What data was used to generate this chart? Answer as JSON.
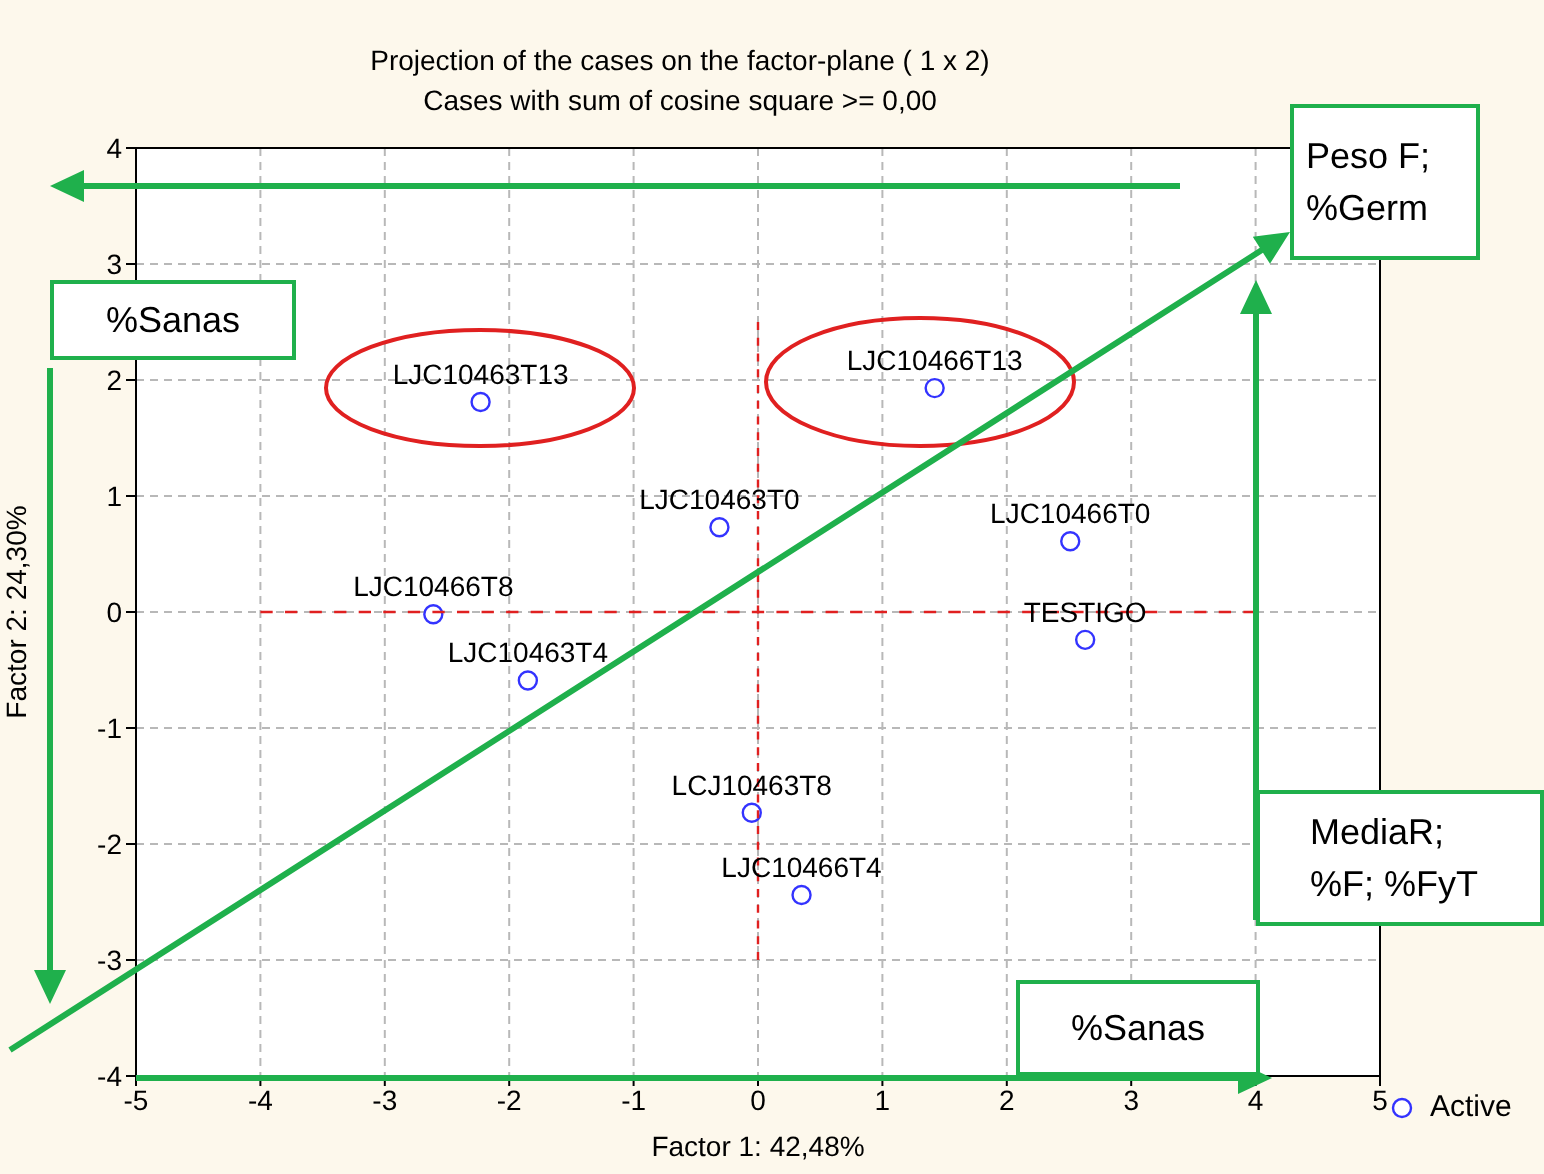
{
  "chart_data": {
    "type": "scatter",
    "title": "Projection of the cases on the factor-plane (  1 x   2)",
    "subtitle": "Cases with sum of cosine square >=  0,00",
    "xlabel": "Factor 1: 42,48%",
    "ylabel": "Factor 2: 24,30%",
    "x": [
      -2.23,
      1.42,
      -0.31,
      2.51,
      -2.61,
      -1.85,
      2.63,
      -0.05,
      0.35
    ],
    "series": [
      {
        "name": "Active",
        "color": "#3333ff",
        "marker": "circle",
        "values": [
          1.81,
          1.93,
          0.73,
          0.61,
          -0.02,
          -0.59,
          -0.24,
          -1.73,
          -2.44
        ]
      },
      {
        "type": "line",
        "color": "#e02020",
        "line_style": "dashed",
        "marker": "none",
        "x": [
          0,
          0
        ],
        "values": [
          -3,
          2.5
        ]
      },
      {
        "type": "line",
        "color": "#e02020",
        "line_style": "dashed",
        "marker": "none",
        "x": [
          -4,
          4
        ],
        "values": [
          0,
          0
        ]
      }
    ],
    "xlim": [
      -5,
      5
    ],
    "xticks": [
      -5,
      -4,
      -3,
      -2,
      -1,
      0,
      1,
      2,
      3,
      4,
      5
    ],
    "ylim": [
      -4,
      4
    ],
    "yticks": [
      -4,
      -3,
      -2,
      -1,
      0,
      1,
      2,
      3,
      4
    ],
    "grid": true,
    "legend": "bottom right",
    "annotations": [
      "Peso F; %Germ",
      "%Sanas",
      "MediaR; %F; %FyT",
      "%Sanas",
      {
        "text": "LJC10463T13",
        "x": -2.23,
        "y": 1.81
      },
      {
        "text": "LJC10466T13",
        "x": 1.42,
        "y": 1.93
      },
      {
        "text": "LJC10463T0",
        "x": -0.31,
        "y": 0.73
      },
      {
        "text": "LJC10466T0",
        "x": 2.51,
        "y": 0.61
      },
      {
        "text": "LJC10466T8",
        "x": -2.61,
        "y": -0.02
      },
      {
        "text": "LJC10463T4",
        "x": -1.85,
        "y": -0.59
      },
      {
        "text": "TESTIGO",
        "x": 2.63,
        "y": -0.24
      },
      {
        "text": "LCJ10463T8",
        "x": -0.05,
        "y": -1.73
      },
      {
        "text": "LJC10466T4",
        "x": 0.35,
        "y": -2.44
      }
    ]
  }
}
